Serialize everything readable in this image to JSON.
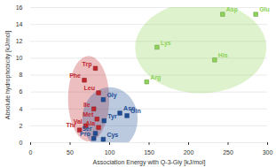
{
  "chart_data": {
    "type": "scatter",
    "xlabel": "Association Energy with Q-3-Gly [kJ/mol]",
    "ylabel": "Absolute hydrophobicity [kJ/mol]",
    "xlim": [
      0,
      300
    ],
    "xticks": [
      0,
      50,
      100,
      150,
      200,
      250,
      300
    ],
    "ylim": [
      0,
      16
    ],
    "yticks": [
      0,
      2,
      4,
      6,
      8,
      10,
      12,
      14,
      16
    ],
    "grid": true,
    "marker": "square",
    "series": [
      {
        "color": "#8ed35a",
        "labels": [
          "Asp",
          "Glu",
          "Lys",
          "His",
          "Arg"
        ],
        "x": [
          243,
          285,
          160,
          233,
          147
        ],
        "y": [
          15.2,
          15.2,
          11.3,
          9.8,
          7.2
        ]
      },
      {
        "color": "#c0272d",
        "labels": [
          "Trp",
          "Phe",
          "Leu",
          "Ile",
          "Met",
          "Val",
          "Thr",
          "Ala"
        ],
        "x": [
          82,
          68,
          86,
          80,
          84,
          70,
          62,
          86
        ],
        "y": [
          8.8,
          7.4,
          5.9,
          4.0,
          2.8,
          2.0,
          1.5,
          1.8
        ]
      },
      {
        "color": "#1f4e96",
        "labels": [
          "Gly",
          "Tyr",
          "Ser",
          "Pro",
          "Cys",
          "Asn",
          "Gln"
        ],
        "x": [
          92,
          93,
          82,
          80,
          92,
          113,
          122
        ],
        "y": [
          5.1,
          2.6,
          1.1,
          0.5,
          0.4,
          3.5,
          3.2
        ]
      }
    ]
  }
}
